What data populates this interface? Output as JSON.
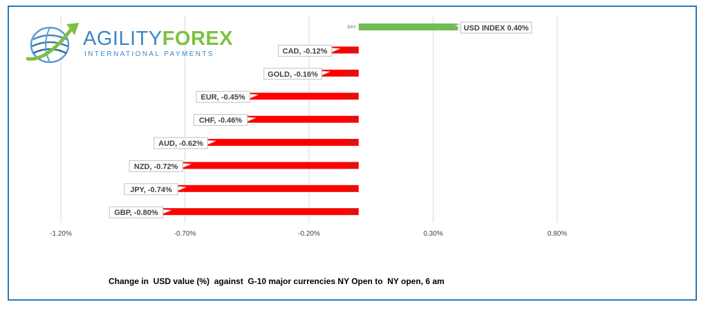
{
  "logo": {
    "brand_part1": "AGILITY",
    "brand_part2": "FOREX",
    "tagline": "INTERNATIONAL PAYMENTS"
  },
  "caption": "Change in  USD value (%)  against  G-10 major currencies NY Open to  NY open, 6 am",
  "colors": {
    "positive": "#70bd55",
    "negative": "#ff0000",
    "frame": "#2e75b6",
    "gridline": "#d9d9d9"
  },
  "chart_data": {
    "type": "bar",
    "orientation": "horizontal",
    "categories": [
      "DXY",
      "CAD",
      "GOLD",
      "EUR",
      "CHF",
      "AUD",
      "NZD",
      "JPY",
      "GBP"
    ],
    "values": [
      0.4,
      -0.12,
      -0.16,
      -0.45,
      -0.46,
      -0.62,
      -0.72,
      -0.74,
      -0.8
    ],
    "data_labels": [
      "USD INDEX 0.40%",
      "CAD, -0.12%",
      "GOLD, -0.16%",
      "EUR, -0.45%",
      "CHF, -0.46%",
      "AUD, -0.62%",
      "NZD, -0.72%",
      "JPY, -0.74%",
      "GBP, -0.80%"
    ],
    "x_ticks": [
      -1.2,
      -0.7,
      -0.2,
      0.3,
      0.8
    ],
    "x_tick_labels": [
      "-1.20%",
      "-0.70%",
      "-0.20%",
      "0.30%",
      "0.80%"
    ],
    "xlim": [
      -1.2,
      0.8
    ],
    "grid": "vertical",
    "legend": "none",
    "title": "",
    "xlabel": "",
    "ylabel": ""
  }
}
